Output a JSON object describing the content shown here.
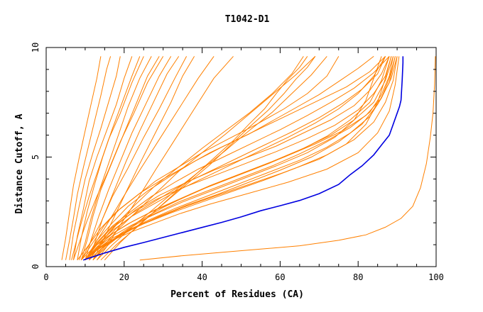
{
  "chart_data": {
    "type": "line",
    "title": "T1042-D1",
    "xlabel": "Percent of Residues (CA)",
    "ylabel": "Distance Cutoff, A",
    "xlim": [
      0,
      100
    ],
    "ylim": [
      0,
      10
    ],
    "x_ticks": [
      0,
      20,
      40,
      60,
      80,
      100
    ],
    "y_ticks": [
      0,
      5,
      10
    ],
    "grid": false,
    "colors": {
      "models": "#ff8000",
      "highlight": "#0000e0",
      "axis": "#000000"
    },
    "highlight_series": {
      "x": [
        9.5,
        15,
        20,
        25,
        30,
        35,
        40,
        45,
        50,
        55,
        60,
        65,
        70,
        75,
        78,
        81,
        84,
        86,
        88,
        89,
        90,
        90.6,
        91,
        91.3,
        91.5,
        91.5
      ],
      "y": [
        0.3,
        0.62,
        0.88,
        1.1,
        1.33,
        1.56,
        1.79,
        2.02,
        2.27,
        2.55,
        2.78,
        3.02,
        3.33,
        3.75,
        4.2,
        4.6,
        5.1,
        5.55,
        6.0,
        6.5,
        7.0,
        7.3,
        7.6,
        8.5,
        9.3,
        9.6
      ]
    },
    "series": [
      {
        "x": [
          5,
          6,
          7,
          8,
          9.5,
          11,
          12.5,
          14,
          15.5,
          16.5
        ],
        "y": [
          0.3,
          1.2,
          2.2,
          3.3,
          4.5,
          5.6,
          6.7,
          7.8,
          9.0,
          9.6
        ]
      },
      {
        "x": [
          6,
          7,
          8.5,
          10,
          12,
          14,
          16,
          18,
          19
        ],
        "y": [
          0.3,
          1.5,
          2.8,
          4.0,
          5.2,
          6.3,
          7.5,
          8.7,
          9.6
        ]
      },
      {
        "x": [
          7,
          8,
          9.5,
          11,
          13,
          15.5,
          18,
          20,
          22
        ],
        "y": [
          0.3,
          1.4,
          2.6,
          3.9,
          5.0,
          6.2,
          7.4,
          8.6,
          9.6
        ]
      },
      {
        "x": [
          8,
          9,
          10.5,
          12.5,
          14.5,
          17,
          19.5,
          22,
          24
        ],
        "y": [
          0.3,
          1.3,
          2.5,
          3.8,
          5.0,
          6.3,
          7.5,
          8.7,
          9.6
        ]
      },
      {
        "x": [
          6.5,
          7.5,
          9,
          11,
          13.5,
          16,
          19,
          22,
          25
        ],
        "y": [
          0.3,
          1.0,
          2.0,
          3.2,
          4.5,
          5.8,
          7.0,
          8.4,
          9.6
        ]
      },
      {
        "x": [
          8.5,
          10,
          11.5,
          13.5,
          16,
          18.5,
          21,
          24,
          27
        ],
        "y": [
          0.3,
          1.1,
          2.2,
          3.4,
          4.7,
          6.0,
          7.3,
          8.6,
          9.6
        ]
      },
      {
        "x": [
          9,
          10.5,
          12,
          14,
          17,
          20,
          23,
          26,
          29
        ],
        "y": [
          0.3,
          1.2,
          2.3,
          3.5,
          4.8,
          6.1,
          7.4,
          8.7,
          9.6
        ]
      },
      {
        "x": [
          7,
          8.5,
          10.5,
          13,
          16,
          19,
          22.5,
          26,
          30
        ],
        "y": [
          0.3,
          1.1,
          2.1,
          3.2,
          4.4,
          5.7,
          7.0,
          8.4,
          9.6
        ]
      },
      {
        "x": [
          10,
          11.5,
          13.5,
          16,
          19,
          22,
          25.5,
          29,
          32
        ],
        "y": [
          0.3,
          1.2,
          2.3,
          3.5,
          4.8,
          6.1,
          7.4,
          8.7,
          9.6
        ]
      },
      {
        "x": [
          11,
          12.5,
          14.5,
          17.5,
          20.5,
          24,
          27.5,
          31,
          34
        ],
        "y": [
          0.3,
          1.1,
          2.2,
          3.5,
          4.8,
          6.2,
          7.5,
          8.8,
          9.6
        ]
      },
      {
        "x": [
          9,
          11,
          14,
          17,
          21,
          25,
          29,
          33,
          36
        ],
        "y": [
          0.3,
          1.0,
          2.0,
          3.2,
          4.5,
          5.9,
          7.2,
          8.6,
          9.6
        ]
      },
      {
        "x": [
          12,
          14,
          17,
          20.5,
          24,
          28,
          32,
          35,
          38
        ],
        "y": [
          0.3,
          1.0,
          2.1,
          3.4,
          4.7,
          6.1,
          7.5,
          8.7,
          9.6
        ]
      },
      {
        "x": [
          10,
          12,
          15.5,
          19.5,
          24,
          29,
          34,
          39,
          43
        ],
        "y": [
          0.3,
          0.9,
          1.9,
          3.1,
          4.4,
          5.8,
          7.2,
          8.6,
          9.6
        ]
      },
      {
        "x": [
          13,
          15.5,
          19,
          23.5,
          28,
          33,
          38,
          43,
          48
        ],
        "y": [
          0.3,
          0.9,
          1.9,
          3.1,
          4.4,
          5.8,
          7.2,
          8.6,
          9.6
        ]
      },
      {
        "x": [
          4,
          5,
          6,
          7,
          8.5,
          10,
          11.5,
          13,
          14
        ],
        "y": [
          0.3,
          1.3,
          2.5,
          3.7,
          5.0,
          6.2,
          7.4,
          8.6,
          9.6
        ]
      },
      {
        "x": [
          10,
          13,
          17,
          22,
          28,
          34,
          42,
          52,
          62,
          72,
          80,
          85,
          88,
          89.5,
          90.5
        ],
        "y": [
          0.3,
          0.75,
          1.2,
          1.6,
          2.0,
          2.4,
          2.85,
          3.35,
          3.85,
          4.45,
          5.2,
          6.1,
          7.1,
          8.3,
          9.6
        ]
      },
      {
        "x": [
          10,
          13,
          17,
          22,
          28,
          35,
          43,
          52,
          61,
          70,
          77,
          82,
          85,
          87,
          88.5
        ],
        "y": [
          0.3,
          0.8,
          1.3,
          1.75,
          2.2,
          2.7,
          3.2,
          3.75,
          4.3,
          4.9,
          5.6,
          6.5,
          7.5,
          8.6,
          9.6
        ]
      },
      {
        "x": [
          10,
          13,
          17,
          22,
          28,
          35,
          43,
          51,
          59,
          67,
          74,
          79,
          82,
          84,
          86
        ],
        "y": [
          0.3,
          0.85,
          1.4,
          1.9,
          2.4,
          2.95,
          3.5,
          4.05,
          4.6,
          5.2,
          5.9,
          6.7,
          7.6,
          8.6,
          9.6
        ]
      },
      {
        "x": [
          10,
          14,
          19,
          25,
          32,
          40,
          48,
          56,
          64,
          72,
          79,
          84,
          87,
          89,
          90
        ],
        "y": [
          0.3,
          0.9,
          1.45,
          1.95,
          2.45,
          2.95,
          3.45,
          3.95,
          4.5,
          5.1,
          5.8,
          6.6,
          7.5,
          8.5,
          9.6
        ]
      },
      {
        "x": [
          11,
          14,
          18,
          23,
          29,
          36,
          44,
          52,
          60,
          68,
          75,
          81,
          85,
          88,
          89.5
        ],
        "y": [
          0.3,
          0.8,
          1.3,
          1.8,
          2.3,
          2.8,
          3.3,
          3.85,
          4.4,
          5.0,
          5.7,
          6.5,
          7.4,
          8.4,
          9.6
        ]
      },
      {
        "x": [
          10,
          13,
          17,
          22,
          28,
          35,
          42,
          50,
          58,
          66,
          73,
          79,
          84,
          87,
          89
        ],
        "y": [
          0.3,
          0.9,
          1.5,
          2.05,
          2.6,
          3.15,
          3.7,
          4.25,
          4.8,
          5.4,
          6.0,
          6.7,
          7.5,
          8.5,
          9.6
        ]
      },
      {
        "x": [
          11,
          15,
          20,
          26,
          33,
          41,
          49,
          57,
          65,
          72,
          78,
          83,
          86,
          88,
          89.5
        ],
        "y": [
          0.3,
          0.95,
          1.55,
          2.1,
          2.65,
          3.2,
          3.75,
          4.3,
          4.85,
          5.45,
          6.1,
          6.85,
          7.7,
          8.6,
          9.6
        ]
      },
      {
        "x": [
          12,
          16,
          21,
          27,
          34,
          42,
          50,
          58,
          65,
          72,
          78,
          83,
          86,
          88,
          89
        ],
        "y": [
          0.3,
          1.0,
          1.7,
          2.35,
          2.95,
          3.5,
          4.05,
          4.6,
          5.15,
          5.75,
          6.35,
          7.05,
          7.85,
          8.7,
          9.6
        ]
      },
      {
        "x": [
          10,
          13,
          17,
          22,
          28,
          35,
          43,
          51,
          59,
          67,
          74,
          80,
          84,
          87,
          88.5
        ],
        "y": [
          0.3,
          1.05,
          1.8,
          2.45,
          3.05,
          3.6,
          4.15,
          4.7,
          5.25,
          5.85,
          6.45,
          7.15,
          7.9,
          8.7,
          9.6
        ]
      },
      {
        "x": [
          11,
          14,
          18,
          23,
          29,
          36,
          43,
          51,
          59,
          66,
          73,
          79,
          83,
          86,
          88
        ],
        "y": [
          0.3,
          1.1,
          1.9,
          2.6,
          3.25,
          3.85,
          4.4,
          4.95,
          5.5,
          6.1,
          6.7,
          7.35,
          8.05,
          8.8,
          9.6
        ]
      },
      {
        "x": [
          12,
          15,
          19,
          24,
          30,
          37,
          45,
          53,
          61,
          69,
          76,
          82,
          86,
          88.5,
          90
        ],
        "y": [
          0.3,
          0.9,
          1.5,
          2.1,
          2.7,
          3.3,
          3.9,
          4.45,
          5.0,
          5.6,
          6.2,
          6.9,
          7.7,
          8.6,
          9.6
        ]
      },
      {
        "x": [
          9,
          12,
          16,
          21,
          27,
          34,
          41,
          49,
          57,
          65,
          72,
          78,
          83,
          86,
          88
        ],
        "y": [
          0.3,
          0.85,
          1.4,
          1.95,
          2.5,
          3.05,
          3.6,
          4.15,
          4.7,
          5.3,
          5.95,
          6.7,
          7.5,
          8.5,
          9.6
        ]
      },
      {
        "x": [
          10,
          13,
          17,
          22,
          28,
          34,
          41,
          48,
          55,
          62,
          69,
          75,
          80,
          84,
          87
        ],
        "y": [
          0.3,
          1.0,
          1.65,
          2.3,
          2.9,
          3.5,
          4.1,
          4.7,
          5.3,
          5.9,
          6.55,
          7.2,
          7.9,
          8.7,
          9.6
        ]
      },
      {
        "x": [
          10,
          13,
          17,
          22,
          27,
          33,
          39,
          46,
          53,
          60,
          67,
          73,
          79,
          84,
          88
        ],
        "y": [
          0.3,
          1.1,
          1.85,
          2.55,
          3.2,
          3.85,
          4.45,
          5.05,
          5.65,
          6.25,
          6.9,
          7.5,
          8.15,
          8.85,
          9.6
        ]
      },
      {
        "x": [
          11,
          14,
          18,
          23,
          29,
          35,
          42,
          49,
          56,
          63,
          70,
          76,
          81,
          85,
          87
        ],
        "y": [
          0.3,
          1.0,
          1.75,
          2.45,
          3.1,
          3.75,
          4.35,
          4.95,
          5.55,
          6.15,
          6.8,
          7.45,
          8.1,
          8.8,
          9.6
        ]
      },
      {
        "x": [
          9,
          12,
          15,
          19,
          24,
          30,
          36,
          42,
          49,
          56,
          63,
          70,
          77,
          83,
          87
        ],
        "y": [
          0.3,
          1.1,
          1.9,
          2.65,
          3.35,
          4.0,
          4.6,
          5.2,
          5.8,
          6.4,
          7.0,
          7.6,
          8.2,
          8.9,
          9.6
        ]
      },
      {
        "x": [
          10,
          13,
          17,
          21,
          26,
          32,
          38,
          45,
          52,
          58,
          64,
          70,
          75,
          80,
          84
        ],
        "y": [
          0.3,
          1.2,
          2.0,
          2.75,
          3.45,
          4.15,
          4.8,
          5.45,
          6.05,
          6.65,
          7.25,
          7.85,
          8.45,
          9.05,
          9.6
        ]
      },
      {
        "x": [
          8,
          11,
          14,
          18,
          23,
          28,
          34,
          40,
          47,
          54,
          61,
          67,
          72,
          75
        ],
        "y": [
          0.3,
          1.0,
          1.75,
          2.5,
          3.2,
          3.9,
          4.55,
          5.2,
          5.85,
          6.5,
          7.2,
          7.9,
          8.7,
          9.6
        ]
      },
      {
        "x": [
          12,
          15,
          19,
          24,
          29,
          34,
          40,
          46,
          52,
          58,
          64,
          69
        ],
        "y": [
          0.3,
          1.0,
          1.8,
          2.65,
          3.5,
          4.35,
          5.2,
          6.05,
          6.95,
          7.85,
          8.75,
          9.6
        ]
      },
      {
        "x": [
          14,
          18,
          23,
          28,
          33,
          38,
          43,
          48,
          52,
          56,
          59,
          62,
          65,
          67
        ],
        "y": [
          0.3,
          1.0,
          1.75,
          2.55,
          3.35,
          4.15,
          4.95,
          5.75,
          6.5,
          7.2,
          7.9,
          8.55,
          9.1,
          9.6
        ]
      },
      {
        "x": [
          15,
          19,
          24,
          30,
          36,
          42,
          47,
          52,
          57,
          61,
          64,
          67,
          69
        ],
        "y": [
          0.3,
          1.1,
          1.95,
          2.85,
          3.75,
          4.65,
          5.5,
          6.35,
          7.15,
          7.9,
          8.55,
          9.1,
          9.6
        ]
      },
      {
        "x": [
          13,
          17,
          22,
          28,
          34,
          40,
          46,
          52,
          58,
          63,
          68,
          72
        ],
        "y": [
          0.3,
          1.0,
          1.8,
          2.7,
          3.6,
          4.45,
          5.3,
          6.2,
          7.05,
          7.9,
          8.75,
          9.6
        ]
      },
      {
        "x": [
          11,
          14,
          18,
          23,
          28,
          34,
          40,
          46,
          52,
          58,
          63,
          66
        ],
        "y": [
          0.3,
          1.1,
          1.95,
          2.85,
          3.7,
          4.55,
          5.4,
          6.2,
          7.0,
          7.9,
          8.8,
          9.6
        ]
      },
      {
        "x": [
          24,
          35,
          45,
          55,
          65,
          75,
          82,
          87,
          91,
          94,
          96,
          97.5,
          98.5,
          99.2,
          99.6,
          99.8
        ],
        "y": [
          0.3,
          0.5,
          0.65,
          0.8,
          0.95,
          1.2,
          1.45,
          1.8,
          2.2,
          2.75,
          3.6,
          4.7,
          5.9,
          7.0,
          8.3,
          9.6
        ]
      }
    ]
  }
}
